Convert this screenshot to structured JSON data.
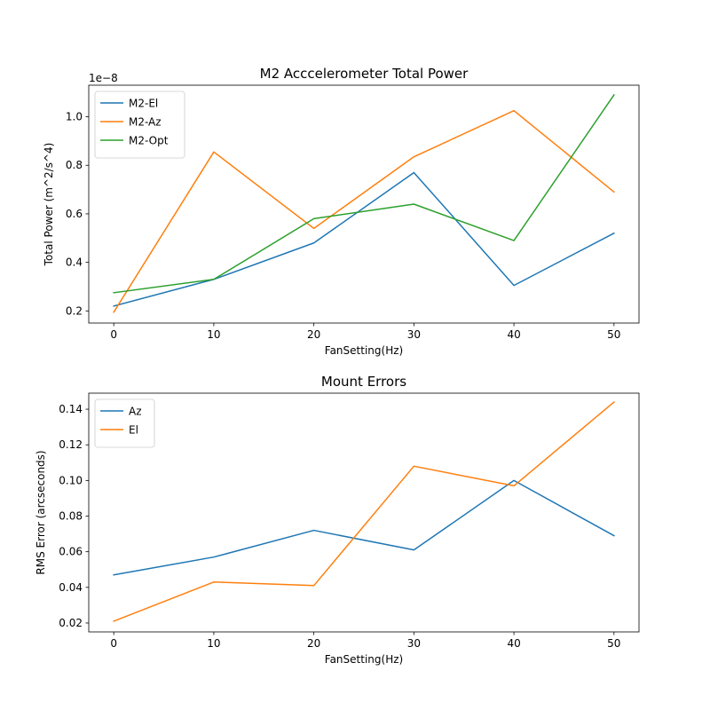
{
  "chart_data": [
    {
      "type": "line",
      "title": "M2 Acccelerometer Total Power",
      "xlabel": "FanSetting(Hz)",
      "ylabel": "Total Power (m^2/s^4)",
      "offset_text": "1e−8",
      "x": [
        0,
        10,
        20,
        30,
        40,
        50
      ],
      "xticks": [
        0,
        10,
        20,
        30,
        40,
        50
      ],
      "xtick_labels": [
        "0",
        "10",
        "20",
        "30",
        "40",
        "50"
      ],
      "xlim": [
        -2.5,
        52.5
      ],
      "ylim": [
        0.15,
        1.13
      ],
      "yticks": [
        0.2,
        0.4,
        0.6,
        0.8,
        1.0
      ],
      "ytick_labels": [
        "0.2",
        "0.4",
        "0.6",
        "0.8",
        "1.0"
      ],
      "legend_position": "upper-left",
      "series": [
        {
          "name": "M2-El",
          "color": "#1f77b4",
          "values": [
            0.22,
            0.33,
            0.48,
            0.77,
            0.305,
            0.52
          ]
        },
        {
          "name": "M2-Az",
          "color": "#ff7f0e",
          "values": [
            0.195,
            0.855,
            0.54,
            0.835,
            1.025,
            0.69
          ]
        },
        {
          "name": "M2-Opt",
          "color": "#2ca02c",
          "values": [
            0.275,
            0.33,
            0.58,
            0.64,
            0.49,
            1.09
          ]
        }
      ]
    },
    {
      "type": "line",
      "title": "Mount Errors",
      "xlabel": "FanSetting(Hz)",
      "ylabel": "RMS Error (arcseconds)",
      "x": [
        0,
        10,
        20,
        30,
        40,
        50
      ],
      "xticks": [
        0,
        10,
        20,
        30,
        40,
        50
      ],
      "xtick_labels": [
        "0",
        "10",
        "20",
        "30",
        "40",
        "50"
      ],
      "xlim": [
        -2.5,
        52.5
      ],
      "ylim": [
        0.015,
        0.149
      ],
      "yticks": [
        0.02,
        0.04,
        0.06,
        0.08,
        0.1,
        0.12,
        0.14
      ],
      "ytick_labels": [
        "0.02",
        "0.04",
        "0.06",
        "0.08",
        "0.10",
        "0.12",
        "0.14"
      ],
      "legend_position": "upper-left",
      "series": [
        {
          "name": "Az",
          "color": "#1f77b4",
          "values": [
            0.047,
            0.057,
            0.072,
            0.061,
            0.1,
            0.069
          ]
        },
        {
          "name": "El",
          "color": "#ff7f0e",
          "values": [
            0.021,
            0.043,
            0.041,
            0.108,
            0.097,
            0.144
          ]
        }
      ]
    }
  ]
}
